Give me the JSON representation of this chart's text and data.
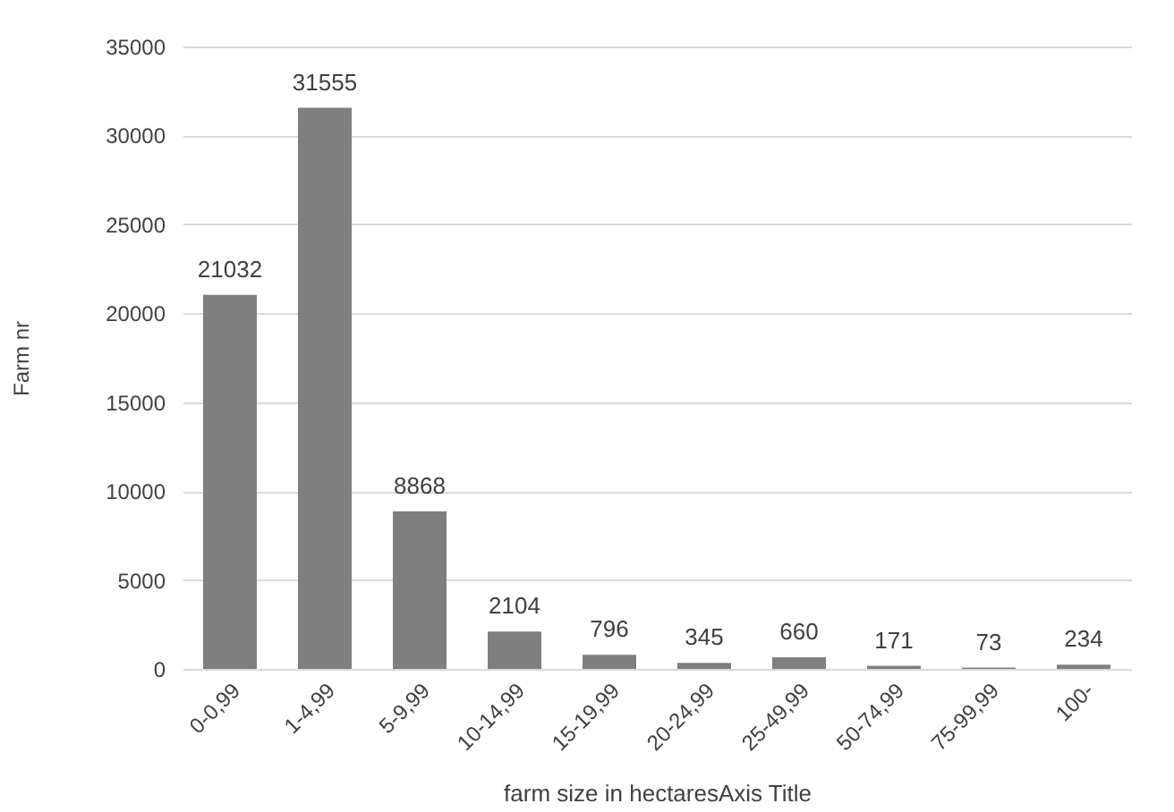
{
  "chart_data": {
    "type": "bar",
    "xlabel": "farm size in hectaresAxis Title",
    "ylabel": "Farm nr",
    "categories": [
      "0-0,99",
      "1-4,99",
      "5-9,99",
      "10-14,99",
      "15-19,99",
      "20-24,99",
      "25-49,99",
      "50-74,99",
      "75-99,99",
      "100-"
    ],
    "values": [
      21032,
      31555,
      8868,
      2104,
      796,
      345,
      660,
      171,
      73,
      234
    ],
    "color": "#7f7f7f",
    "ylim": [
      0,
      35000
    ],
    "yticks": [
      0,
      5000,
      10000,
      15000,
      20000,
      25000,
      30000,
      35000
    ],
    "grid": "y",
    "data_labels": true
  }
}
